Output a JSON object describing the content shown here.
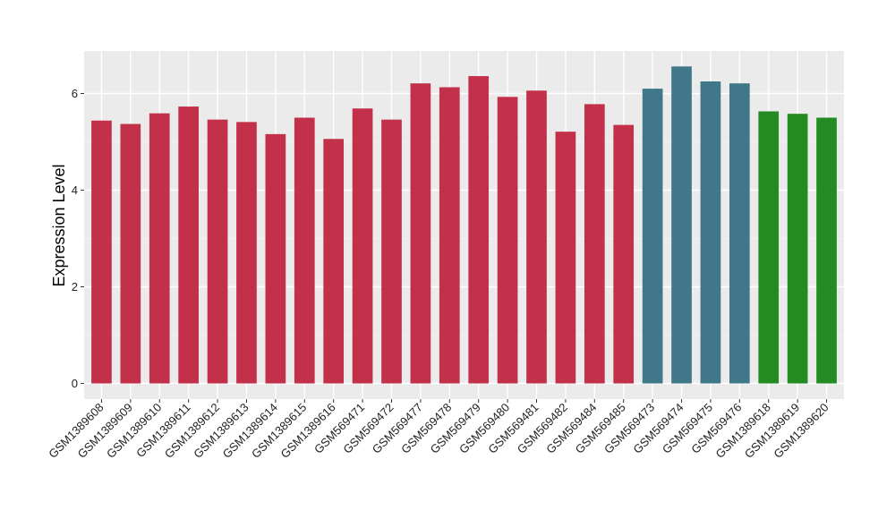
{
  "chart_data": {
    "type": "bar",
    "title": "",
    "xlabel": "",
    "ylabel": "Expression Level",
    "ylim": [
      0,
      6.85
    ],
    "y_ticks": [
      0,
      2,
      4,
      6
    ],
    "grid": true,
    "legend": "none",
    "colors": {
      "red": "#c3304a",
      "teal": "#40788a",
      "green": "#238b22",
      "panel_background": "#ebebeb",
      "grid_major": "#ffffff",
      "grid_minor": "#f5f5f5"
    },
    "bars": [
      {
        "category": "GSM1389608",
        "value": 5.44,
        "color": "red"
      },
      {
        "category": "GSM1389609",
        "value": 5.37,
        "color": "red"
      },
      {
        "category": "GSM1389610",
        "value": 5.59,
        "color": "red"
      },
      {
        "category": "GSM1389611",
        "value": 5.73,
        "color": "red"
      },
      {
        "category": "GSM1389612",
        "value": 5.46,
        "color": "red"
      },
      {
        "category": "GSM1389613",
        "value": 5.41,
        "color": "red"
      },
      {
        "category": "GSM1389614",
        "value": 5.16,
        "color": "red"
      },
      {
        "category": "GSM1389615",
        "value": 5.5,
        "color": "red"
      },
      {
        "category": "GSM1389616",
        "value": 5.06,
        "color": "red"
      },
      {
        "category": "GSM569471",
        "value": 5.69,
        "color": "red"
      },
      {
        "category": "GSM569472",
        "value": 5.46,
        "color": "red"
      },
      {
        "category": "GSM569477",
        "value": 6.21,
        "color": "red"
      },
      {
        "category": "GSM569478",
        "value": 6.13,
        "color": "red"
      },
      {
        "category": "GSM569479",
        "value": 6.36,
        "color": "red"
      },
      {
        "category": "GSM569480",
        "value": 5.93,
        "color": "red"
      },
      {
        "category": "GSM569481",
        "value": 6.06,
        "color": "red"
      },
      {
        "category": "GSM569482",
        "value": 5.21,
        "color": "red"
      },
      {
        "category": "GSM569484",
        "value": 5.78,
        "color": "red"
      },
      {
        "category": "GSM569485",
        "value": 5.35,
        "color": "red"
      },
      {
        "category": "GSM569473",
        "value": 6.1,
        "color": "teal"
      },
      {
        "category": "GSM569474",
        "value": 6.56,
        "color": "teal"
      },
      {
        "category": "GSM569475",
        "value": 6.25,
        "color": "teal"
      },
      {
        "category": "GSM569476",
        "value": 6.21,
        "color": "teal"
      },
      {
        "category": "GSM1389618",
        "value": 5.63,
        "color": "green"
      },
      {
        "category": "GSM1389619",
        "value": 5.58,
        "color": "green"
      },
      {
        "category": "GSM1389620",
        "value": 5.5,
        "color": "green"
      }
    ]
  }
}
